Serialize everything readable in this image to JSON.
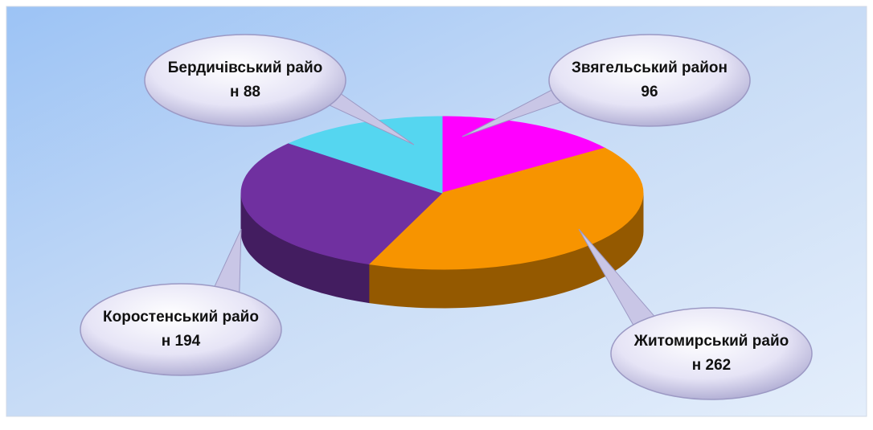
{
  "chart_data": {
    "type": "pie3d",
    "categories": [
      "Звягельський район",
      "Житомирський район",
      "Коростенський район",
      "Бердичівський район"
    ],
    "values": [
      96,
      262,
      194,
      88
    ],
    "colors": [
      "#ff00ff",
      "#f79400",
      "#7030a0",
      "#55d6f0"
    ]
  }
}
